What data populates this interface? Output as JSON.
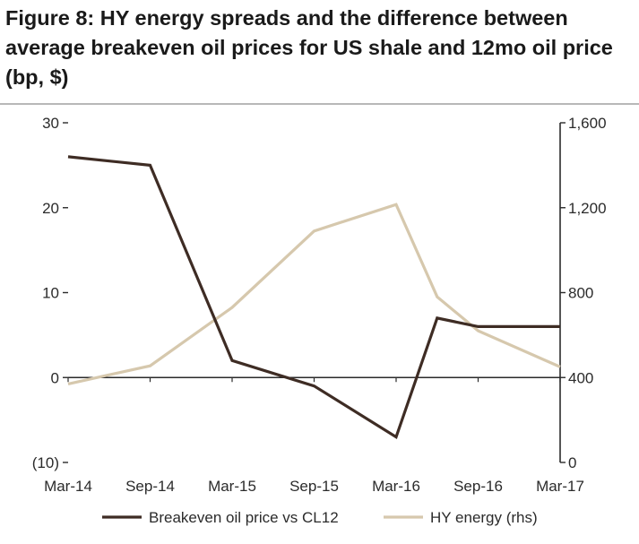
{
  "title": "Figure 8: HY energy spreads and the difference between average breakeven oil prices for US shale and 12mo oil price (bp, $)",
  "colors": {
    "series1": "#3e2c24",
    "series2": "#d6c8ad",
    "axis": "#2b2b2b"
  },
  "chart_data": {
    "type": "line",
    "title": "Figure 8: HY energy spreads and the difference between average breakeven oil prices for US shale and 12mo oil price (bp, $)",
    "categories": [
      "Mar-14",
      "Sep-14",
      "Mar-15",
      "Sep-15",
      "Mar-16",
      "Sep-16",
      "Mar-17"
    ],
    "y_left": {
      "min": -10,
      "max": 30,
      "ticks": [
        -10,
        0,
        10,
        20,
        30
      ],
      "tick_labels": [
        "(10)",
        "0",
        "10",
        "20",
        "30"
      ]
    },
    "y_right": {
      "min": 0,
      "max": 1600,
      "ticks": [
        0,
        400,
        800,
        1200,
        1600
      ],
      "tick_labels": [
        "0",
        "400",
        "800",
        "1,200",
        "1,600"
      ]
    },
    "grid": false,
    "legend_position": "bottom",
    "series": [
      {
        "name": "Breakeven oil price vs CL12",
        "axis": "left",
        "points": [
          {
            "x": "Mar-14",
            "y": 26
          },
          {
            "x": "Sep-14",
            "y": 25
          },
          {
            "x": "Mar-15",
            "y": 2
          },
          {
            "x": "Sep-15",
            "y": -1
          },
          {
            "x": "Mar-16",
            "y": -7
          },
          {
            "x": "Jun-16",
            "y": 7
          },
          {
            "x": "Sep-16",
            "y": 6
          },
          {
            "x": "Mar-17",
            "y": 6
          }
        ]
      },
      {
        "name": "HY energy (rhs)",
        "axis": "right",
        "points": [
          {
            "x": "Mar-14",
            "y": 370
          },
          {
            "x": "Sep-14",
            "y": 455
          },
          {
            "x": "Mar-15",
            "y": 730
          },
          {
            "x": "Sep-15",
            "y": 1090
          },
          {
            "x": "Mar-16",
            "y": 1215
          },
          {
            "x": "Jun-16",
            "y": 780
          },
          {
            "x": "Sep-16",
            "y": 620
          },
          {
            "x": "Mar-17",
            "y": 450
          }
        ]
      }
    ]
  }
}
